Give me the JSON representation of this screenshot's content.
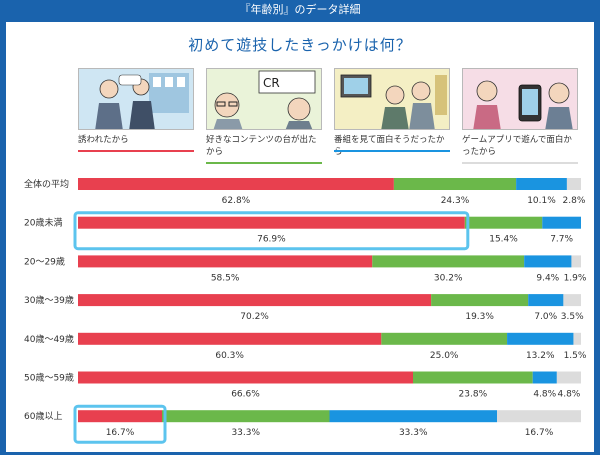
{
  "header": {
    "title": "『年齢別』のデータ詳細"
  },
  "colors": {
    "series": [
      "#e8404f",
      "#6bb84a",
      "#1a94e0",
      "#dcdcdc"
    ],
    "highlight": "#5cc4ee",
    "accent": "#1a63ad"
  },
  "legend": [
    {
      "label": "誘われたから",
      "icon": "people-walking-illustration"
    },
    {
      "label": "好きなコンテンツの台が出たから",
      "icon": "cr-machine-illustration"
    },
    {
      "label": "番組を見て面白そうだったから",
      "icon": "tv-program-illustration"
    },
    {
      "label": "ゲームアプリで遊んで面白かったから",
      "icon": "game-app-illustration"
    }
  ],
  "chart_data": {
    "type": "bar",
    "stacked": true,
    "orientation": "horizontal",
    "title": "初めて遊技したきっかけは何？",
    "categories": [
      "全体の平均",
      "20歳未満",
      "20〜29歳",
      "30歳〜39歳",
      "40歳〜49歳",
      "50歳〜59歳",
      "60歳以上"
    ],
    "series": [
      {
        "name": "誘われたから",
        "values": [
          62.8,
          76.9,
          58.5,
          70.2,
          60.3,
          66.6,
          16.7
        ],
        "labels": [
          "62.8%",
          "76.9%",
          "58.5%",
          "70.2%",
          "60.3%",
          "66.6%",
          "16.7%"
        ]
      },
      {
        "name": "好きなコンテンツの台が出たから",
        "values": [
          24.3,
          15.4,
          30.2,
          19.3,
          25.0,
          23.8,
          33.3
        ],
        "labels": [
          "24.3%",
          "15.4%",
          "30.2%",
          "19.3%",
          "25.0%",
          "23.8%",
          "33.3%"
        ]
      },
      {
        "name": "番組を見て面白そうだったから",
        "values": [
          10.1,
          7.7,
          9.4,
          7.0,
          13.2,
          4.8,
          33.3
        ],
        "labels": [
          "10.1%",
          "7.7%",
          "9.4%",
          "7.0%",
          "13.2%",
          "4.8%",
          "33.3%"
        ]
      },
      {
        "name": "ゲームアプリで遊んで面白かったから",
        "values": [
          2.8,
          0.0,
          1.9,
          3.5,
          1.5,
          4.8,
          16.7
        ],
        "labels": [
          "2.8%",
          "",
          "1.9%",
          "3.5%",
          "1.5%",
          "4.8%",
          "16.7%"
        ]
      }
    ],
    "highlighted": [
      {
        "category": "20歳未満",
        "series": "誘われたから"
      },
      {
        "category": "60歳以上",
        "series": "誘われたから"
      }
    ],
    "xlim": [
      0,
      100
    ],
    "grid": false
  }
}
